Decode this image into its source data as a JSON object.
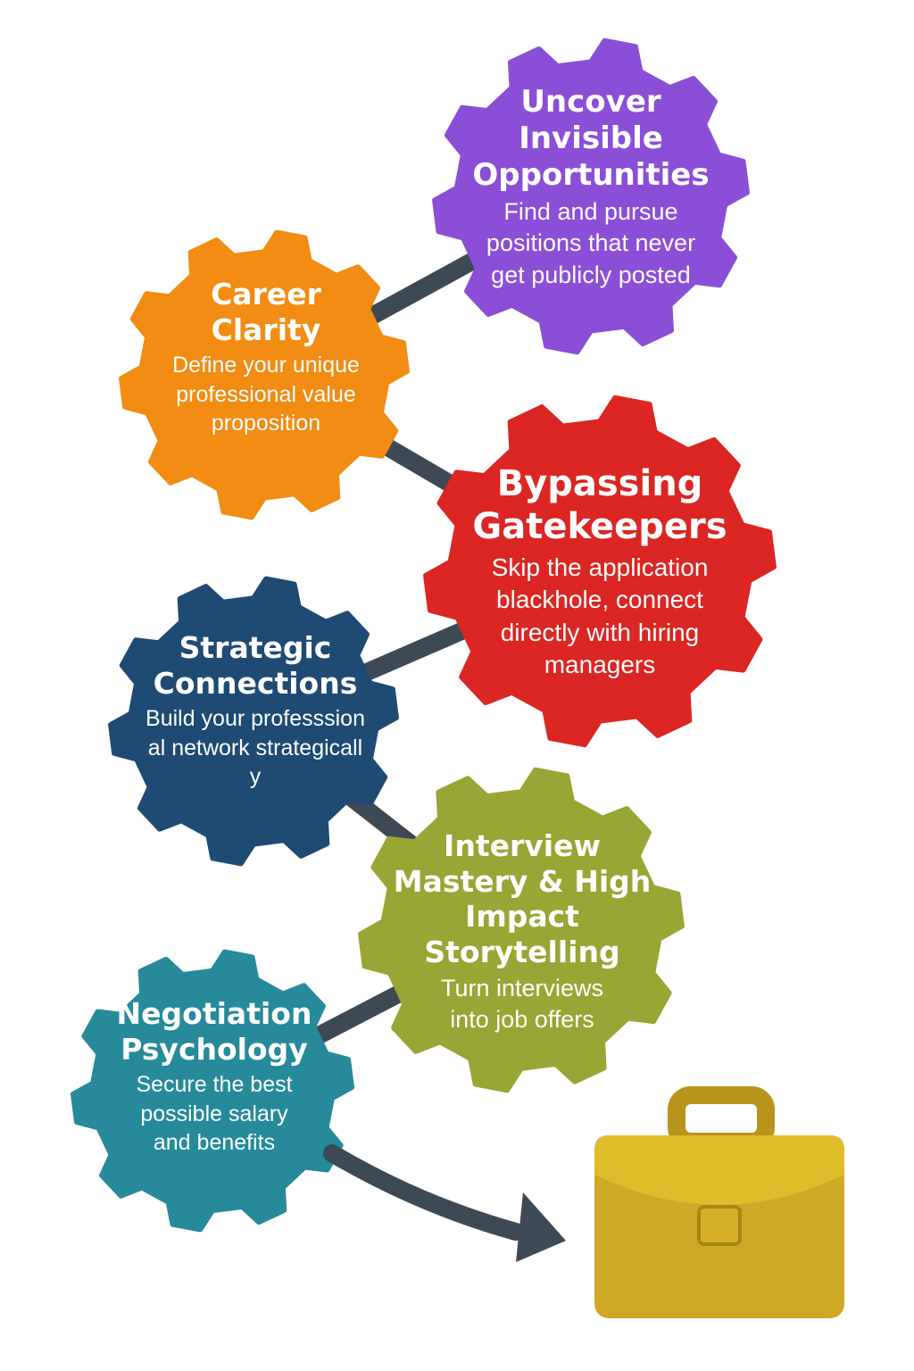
{
  "steps": [
    {
      "title": "Uncover Invisible Opportunities",
      "description": "Find and pursue positions that never get publicly posted",
      "color": "#8a4fd6"
    },
    {
      "title": "Career Clarity",
      "description": "Define your unique professional value proposition",
      "color": "#f28c12"
    },
    {
      "title": "Bypassing Gatekeepers",
      "description": "Skip the application blackhole, connect directly with hiring managers",
      "color": "#db2623"
    },
    {
      "title": "Strategic Connections",
      "description": "Build your professsional network strategically",
      "color": "#1f4a73"
    },
    {
      "title": "Interview Mastery & High Impact Storytelling",
      "description": "Turn interviews into job offers",
      "color": "#99a534"
    },
    {
      "title": "Negotiation Psychology",
      "description": "Secure the best possible salary and benefits",
      "color": "#268a9a"
    }
  ],
  "connector_color": "#3d4a55",
  "goal": {
    "icon": "briefcase-icon",
    "color": "#e0bb2a"
  }
}
